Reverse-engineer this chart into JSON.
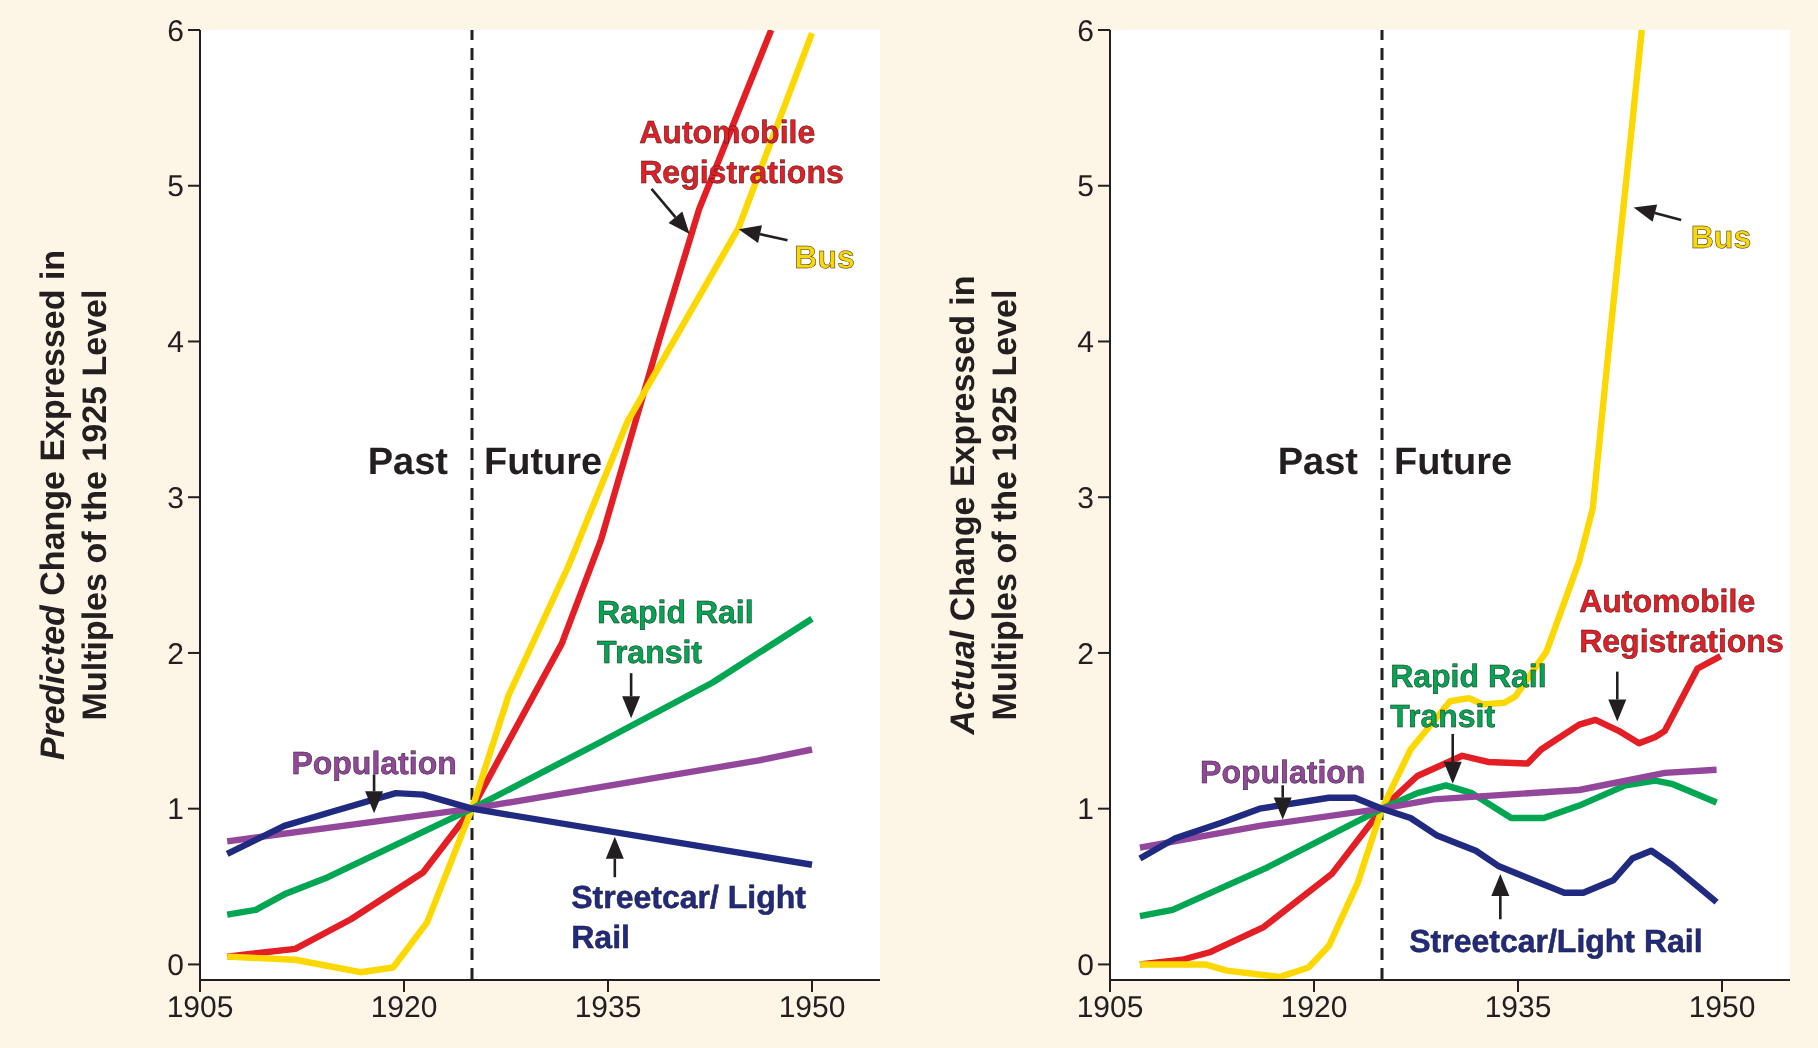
{
  "chart_data": [
    {
      "type": "line",
      "ylabel": "Predicted Change Expressed in Multiples of the 1925 Level",
      "xlim": [
        1905,
        1955
      ],
      "xticks": [
        1905,
        1920,
        1935,
        1950
      ],
      "ylim": [
        -0.1,
        6
      ],
      "yticks": [
        0,
        1,
        2,
        3,
        4,
        5,
        6
      ],
      "ref_lines": [
        {
          "axis": "x",
          "value": 1925,
          "color": "#231f20",
          "line_style": "dashed"
        }
      ],
      "annotations": [
        "Past",
        "Future"
      ],
      "series": [
        {
          "name": "Automobile Registrations",
          "color": "#e31e24",
          "x": [
            1907,
            1912,
            1916.1,
            1921.4,
            1925,
            1931.6,
            1934.5,
            1938.8,
            1941.7,
            1947
          ],
          "values": [
            0.05,
            0.1,
            0.29,
            0.59,
            1.0,
            2.06,
            2.73,
            4.02,
            4.85,
            6.0
          ]
        },
        {
          "name": "Bus",
          "color": "#fdd800",
          "x": [
            1907,
            1912,
            1916.8,
            1919.2,
            1921.7,
            1925,
            1927.7,
            1932.1,
            1936.4,
            1944.6,
            1950
          ],
          "values": [
            0.05,
            0.03,
            -0.05,
            -0.02,
            0.27,
            1.0,
            1.73,
            2.56,
            3.48,
            4.73,
            5.98
          ]
        },
        {
          "name": "Rapid Rail Transit",
          "color": "#00a651",
          "x": [
            1907,
            1909.1,
            1911.2,
            1914.4,
            1925,
            1934.5,
            1942.7,
            1950
          ],
          "values": [
            0.32,
            0.35,
            0.45,
            0.56,
            1.0,
            1.43,
            1.81,
            2.22
          ]
        },
        {
          "name": "Population",
          "color": "#93479b",
          "x": [
            1907,
            1925,
            1946.1,
            1950
          ],
          "values": [
            0.79,
            1.0,
            1.31,
            1.38
          ]
        },
        {
          "name": "Streetcar/ Light Rail",
          "color": "#1f2a80",
          "x": [
            1907,
            1911.2,
            1914.7,
            1919.4,
            1921.4,
            1925,
            1950
          ],
          "values": [
            0.71,
            0.89,
            0.98,
            1.1,
            1.09,
            1.0,
            0.64
          ]
        }
      ]
    },
    {
      "type": "line",
      "ylabel": "Actual Change Expressed in Multiples of the 1925 Level",
      "xlim": [
        1905,
        1955
      ],
      "xticks": [
        1905,
        1920,
        1935,
        1950
      ],
      "ylim": [
        -0.1,
        6
      ],
      "yticks": [
        0,
        1,
        2,
        3,
        4,
        5,
        6
      ],
      "ref_lines": [
        {
          "axis": "x",
          "value": 1925,
          "color": "#231f20",
          "line_style": "dashed"
        }
      ],
      "annotations": [
        "Past",
        "Future"
      ],
      "series": [
        {
          "name": "Automobile Registrations",
          "color": "#e31e24",
          "x": [
            1907.2,
            1910.3,
            1912.4,
            1916.3,
            1921.3,
            1925,
            1927.6,
            1930.9,
            1932.8,
            1935.7,
            1936.7,
            1939.5,
            1940.7,
            1942.4,
            1943.9,
            1945.1,
            1945.8,
            1948.2,
            1949.9
          ],
          "values": [
            0,
            0.03,
            0.08,
            0.24,
            0.58,
            1.0,
            1.21,
            1.34,
            1.3,
            1.29,
            1.38,
            1.54,
            1.57,
            1.5,
            1.42,
            1.46,
            1.5,
            1.9,
            1.98
          ]
        },
        {
          "name": "Bus",
          "color": "#fdd800",
          "x": [
            1907.2,
            1912,
            1913.6,
            1917.5,
            1919.6,
            1921.1,
            1923.2,
            1925,
            1927.1,
            1930,
            1931.4,
            1932.4,
            1934,
            1934.8,
            1937.1,
            1939.5,
            1940.5,
            1941.7,
            1942.4,
            1943.4,
            1944.1
          ],
          "values": [
            0,
            0,
            -0.04,
            -0.08,
            -0.02,
            0.12,
            0.52,
            1.0,
            1.38,
            1.69,
            1.71,
            1.67,
            1.68,
            1.72,
            2.01,
            2.59,
            2.93,
            3.98,
            4.57,
            5.4,
            6.0
          ]
        },
        {
          "name": "Rapid Rail Transit",
          "color": "#00a651",
          "x": [
            1907.2,
            1909.6,
            1916.5,
            1925,
            1927.6,
            1929.7,
            1931.6,
            1934.5,
            1936.9,
            1939.5,
            1942.9,
            1945.1,
            1946.3,
            1949.6
          ],
          "values": [
            0.31,
            0.35,
            0.62,
            1.0,
            1.1,
            1.15,
            1.1,
            0.94,
            0.94,
            1.02,
            1.15,
            1.18,
            1.16,
            1.04
          ]
        },
        {
          "name": "Population",
          "color": "#93479b",
          "x": [
            1907.2,
            1916,
            1925,
            1928.8,
            1939.5,
            1945.8,
            1949.6
          ],
          "values": [
            0.75,
            0.89,
            1.0,
            1.06,
            1.12,
            1.23,
            1.25
          ]
        },
        {
          "name": "Streetcar/Light Rail",
          "color": "#1f2a80",
          "x": [
            1907.2,
            1909.8,
            1913.2,
            1916,
            1921.1,
            1923,
            1925,
            1927.1,
            1929,
            1931.9,
            1933.6,
            1938.4,
            1939.8,
            1942,
            1943.4,
            1944.8,
            1946.3,
            1949.6
          ],
          "values": [
            0.68,
            0.81,
            0.91,
            1.0,
            1.07,
            1.07,
            1.0,
            0.94,
            0.83,
            0.73,
            0.63,
            0.46,
            0.46,
            0.54,
            0.68,
            0.73,
            0.64,
            0.4
          ]
        }
      ]
    }
  ]
}
